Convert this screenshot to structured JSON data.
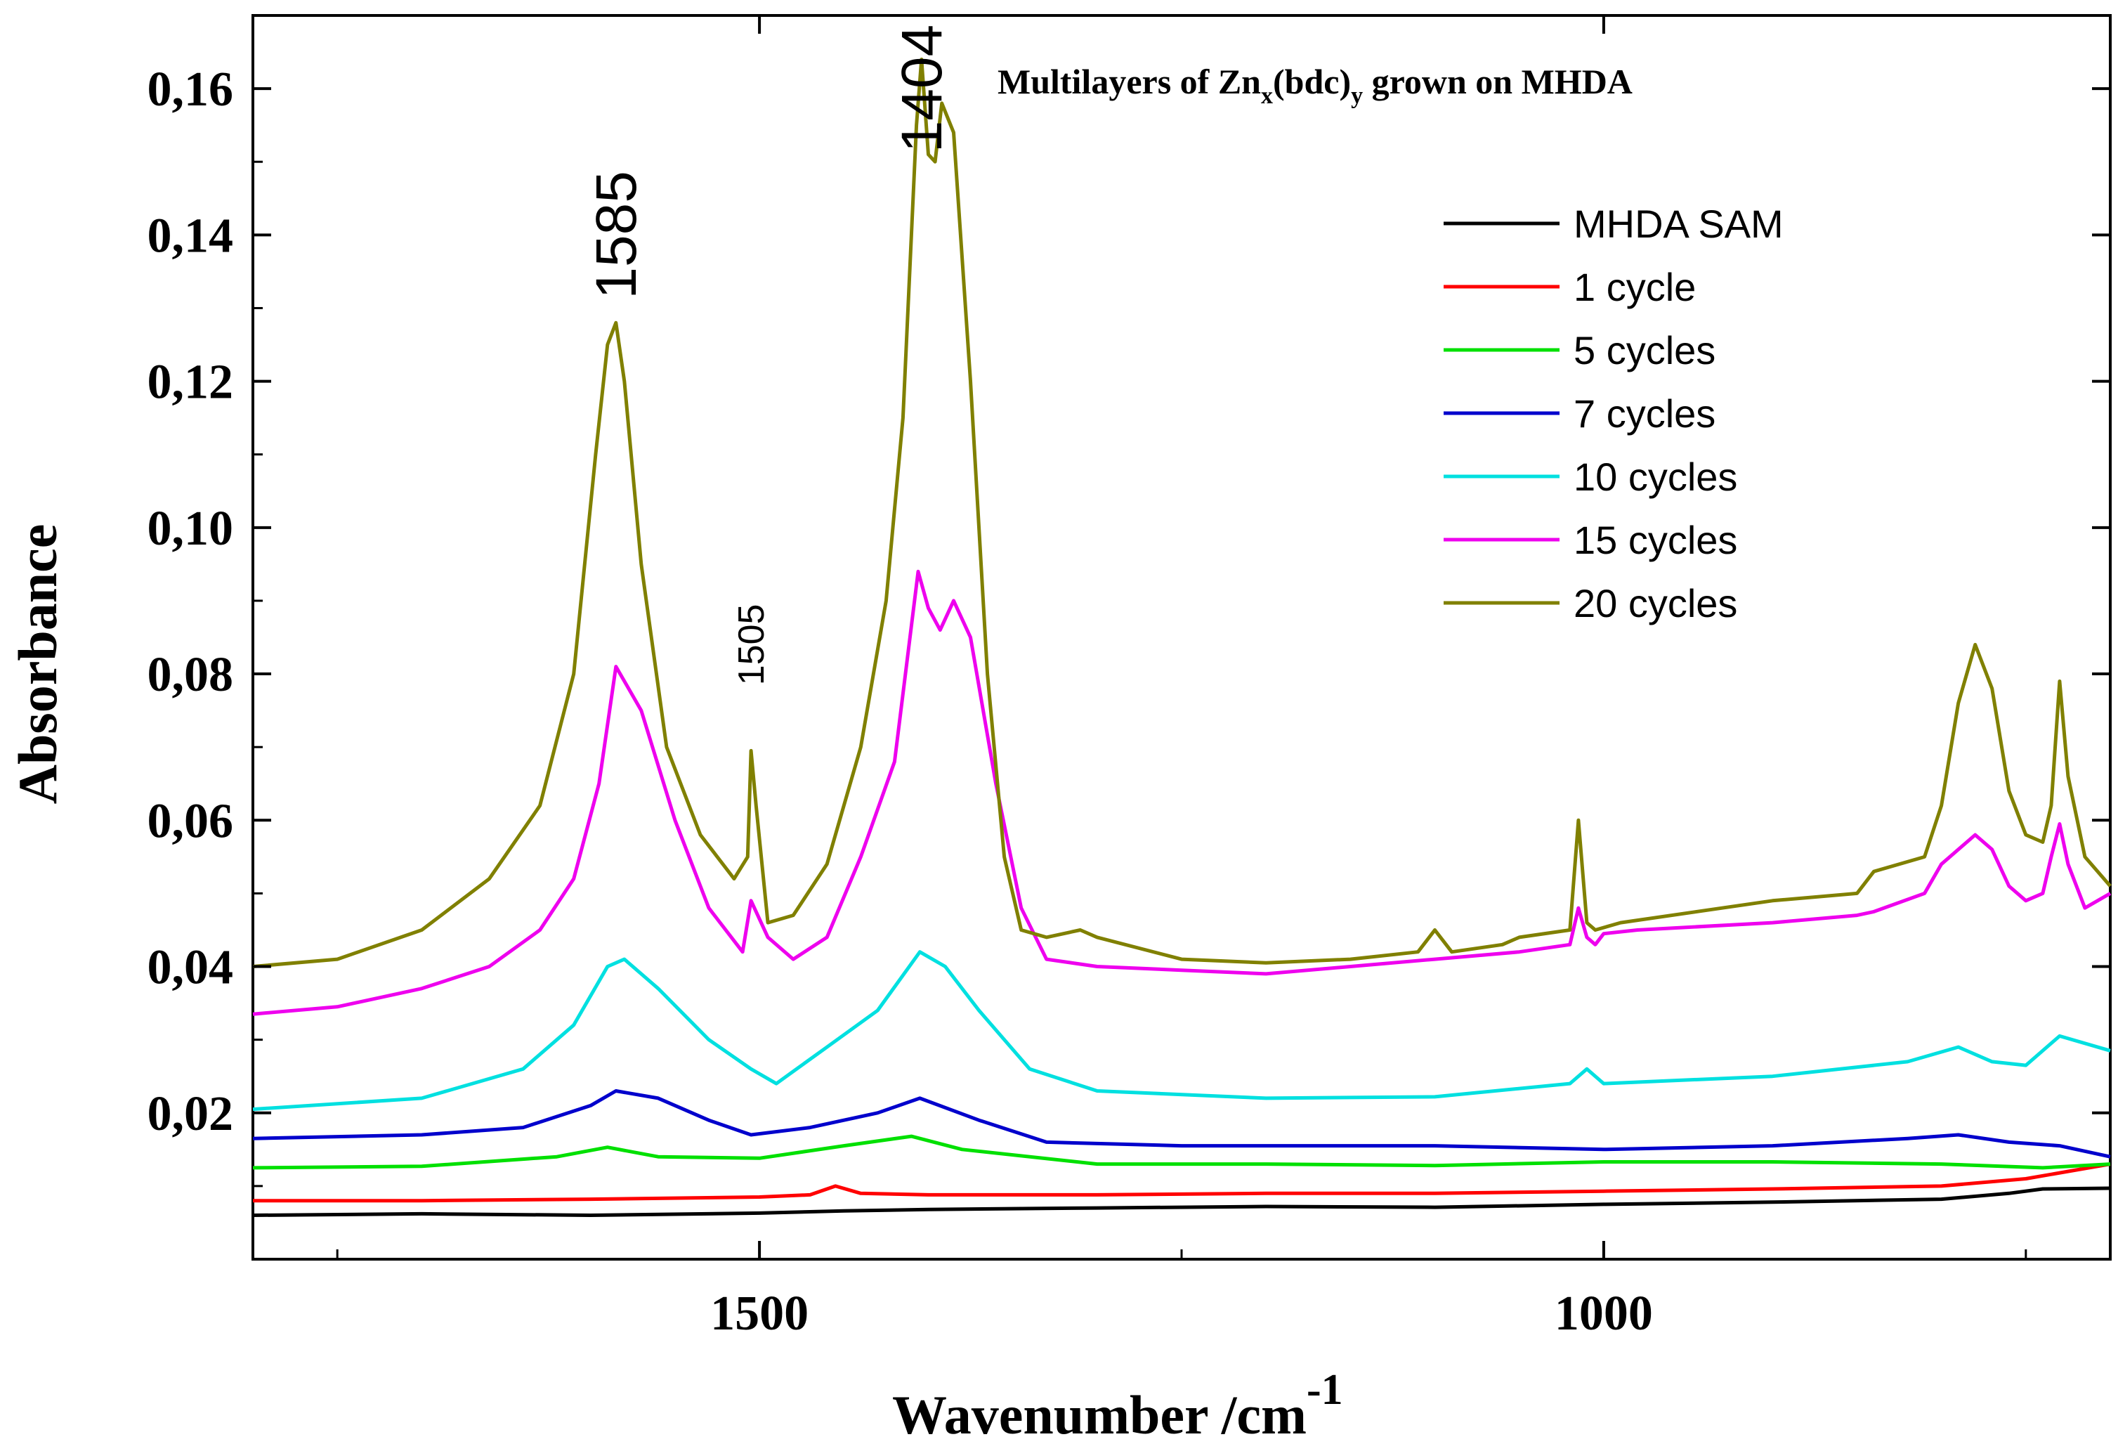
{
  "chart_data": {
    "type": "line",
    "title_parts": {
      "prefix": "Multilayers of Zn",
      "sub1": "x",
      "mid": "(bdc)",
      "sub2": "y",
      "suffix": " grown on MHDA"
    },
    "xlabel": "Wavenumber /cm",
    "xlabel_sup": "-1",
    "ylabel": "Absorbance",
    "xlim": [
      1800,
      700
    ],
    "ylim": [
      0.0,
      0.17
    ],
    "x_ticks": [
      1500,
      1000
    ],
    "x_tick_labels": [
      "1500",
      "1000"
    ],
    "y_ticks": [
      0.02,
      0.04,
      0.06,
      0.08,
      0.1,
      0.12,
      0.14,
      0.16
    ],
    "y_tick_labels": [
      "0,02",
      "0,04",
      "0,06",
      "0,08",
      "0,10",
      "0,12",
      "0,14",
      "0,16"
    ],
    "legend_position": "top-right",
    "annotations": [
      {
        "text": "1585",
        "x": 1585,
        "y": 0.14,
        "size": "large"
      },
      {
        "text": "1404",
        "x": 1404,
        "y": 0.16,
        "size": "large"
      },
      {
        "text": "1505",
        "x": 1505,
        "y": 0.084,
        "size": "small"
      }
    ],
    "series": [
      {
        "name": "MHDA SAM",
        "color": "#000000",
        "x": [
          1800,
          1700,
          1600,
          1500,
          1450,
          1400,
          1300,
          1200,
          1100,
          1000,
          900,
          800,
          760,
          740,
          700
        ],
        "y": [
          0.006,
          0.0062,
          0.006,
          0.0063,
          0.0066,
          0.0068,
          0.007,
          0.0072,
          0.0071,
          0.0075,
          0.0078,
          0.0082,
          0.009,
          0.0096,
          0.0097
        ]
      },
      {
        "name": "1 cycle",
        "color": "#ff0000",
        "x": [
          1800,
          1700,
          1600,
          1500,
          1470,
          1455,
          1440,
          1400,
          1300,
          1200,
          1100,
          1000,
          900,
          800,
          750,
          700
        ],
        "y": [
          0.008,
          0.008,
          0.0082,
          0.0085,
          0.0088,
          0.01,
          0.009,
          0.0088,
          0.0088,
          0.009,
          0.009,
          0.0093,
          0.0096,
          0.01,
          0.011,
          0.013
        ]
      },
      {
        "name": "5 cycles",
        "color": "#00e000",
        "x": [
          1800,
          1700,
          1620,
          1590,
          1560,
          1500,
          1450,
          1410,
          1380,
          1300,
          1200,
          1100,
          1000,
          900,
          800,
          740,
          700
        ],
        "y": [
          0.0125,
          0.0127,
          0.014,
          0.0153,
          0.014,
          0.0138,
          0.0155,
          0.0168,
          0.015,
          0.013,
          0.013,
          0.0128,
          0.0133,
          0.0133,
          0.013,
          0.0125,
          0.013
        ]
      },
      {
        "name": "7 cycles",
        "color": "#0000cc",
        "x": [
          1800,
          1700,
          1640,
          1600,
          1585,
          1560,
          1530,
          1505,
          1470,
          1430,
          1405,
          1370,
          1330,
          1250,
          1100,
          1000,
          900,
          820,
          790,
          760,
          730,
          700
        ],
        "y": [
          0.0165,
          0.017,
          0.018,
          0.021,
          0.023,
          0.022,
          0.019,
          0.017,
          0.018,
          0.02,
          0.022,
          0.019,
          0.016,
          0.0155,
          0.0155,
          0.015,
          0.0155,
          0.0165,
          0.017,
          0.016,
          0.0155,
          0.014
        ]
      },
      {
        "name": "10 cycles",
        "color": "#00e0e0",
        "x": [
          1800,
          1700,
          1640,
          1610,
          1590,
          1580,
          1560,
          1530,
          1505,
          1490,
          1460,
          1430,
          1405,
          1390,
          1370,
          1340,
          1300,
          1200,
          1100,
          1020,
          1010,
          1000,
          900,
          820,
          790,
          770,
          750,
          730,
          700
        ],
        "y": [
          0.0205,
          0.022,
          0.026,
          0.032,
          0.04,
          0.041,
          0.037,
          0.03,
          0.026,
          0.024,
          0.029,
          0.034,
          0.042,
          0.04,
          0.034,
          0.026,
          0.023,
          0.022,
          0.0222,
          0.024,
          0.026,
          0.024,
          0.025,
          0.027,
          0.029,
          0.027,
          0.0265,
          0.0305,
          0.0285
        ]
      },
      {
        "name": "15 cycles",
        "color": "#ee00ee",
        "x": [
          1800,
          1750,
          1700,
          1660,
          1630,
          1610,
          1595,
          1585,
          1570,
          1550,
          1530,
          1510,
          1505,
          1495,
          1480,
          1460,
          1440,
          1420,
          1406,
          1400,
          1393,
          1385,
          1375,
          1360,
          1345,
          1330,
          1300,
          1250,
          1200,
          1150,
          1100,
          1050,
          1020,
          1015,
          1010,
          1005,
          1000,
          980,
          900,
          850,
          840,
          810,
          800,
          780,
          770,
          760,
          750,
          740,
          735,
          730,
          725,
          715,
          700
        ],
        "y": [
          0.0335,
          0.0345,
          0.037,
          0.04,
          0.045,
          0.052,
          0.065,
          0.081,
          0.075,
          0.06,
          0.048,
          0.042,
          0.049,
          0.044,
          0.041,
          0.044,
          0.055,
          0.068,
          0.094,
          0.089,
          0.086,
          0.09,
          0.085,
          0.065,
          0.048,
          0.041,
          0.04,
          0.0395,
          0.039,
          0.04,
          0.041,
          0.042,
          0.043,
          0.048,
          0.044,
          0.043,
          0.0445,
          0.045,
          0.046,
          0.047,
          0.0475,
          0.05,
          0.054,
          0.058,
          0.056,
          0.051,
          0.049,
          0.05,
          0.055,
          0.0595,
          0.054,
          0.048,
          0.05
        ]
      },
      {
        "name": "20 cycles",
        "color": "#808000",
        "x": [
          1800,
          1750,
          1700,
          1660,
          1630,
          1610,
          1597,
          1590,
          1585,
          1580,
          1570,
          1555,
          1535,
          1515,
          1507,
          1505,
          1502,
          1495,
          1480,
          1460,
          1440,
          1425,
          1415,
          1407,
          1404,
          1400,
          1396,
          1392,
          1385,
          1375,
          1365,
          1355,
          1345,
          1330,
          1310,
          1300,
          1250,
          1200,
          1150,
          1110,
          1100,
          1090,
          1060,
          1050,
          1020,
          1015,
          1010,
          1005,
          990,
          900,
          850,
          840,
          810,
          800,
          790,
          780,
          770,
          760,
          750,
          740,
          735,
          730,
          725,
          715,
          700
        ],
        "y": [
          0.04,
          0.041,
          0.045,
          0.052,
          0.062,
          0.08,
          0.11,
          0.125,
          0.128,
          0.12,
          0.095,
          0.07,
          0.058,
          0.052,
          0.055,
          0.0695,
          0.062,
          0.046,
          0.047,
          0.054,
          0.07,
          0.09,
          0.115,
          0.155,
          0.164,
          0.151,
          0.15,
          0.158,
          0.154,
          0.12,
          0.08,
          0.055,
          0.045,
          0.044,
          0.045,
          0.044,
          0.041,
          0.0405,
          0.041,
          0.042,
          0.045,
          0.042,
          0.043,
          0.044,
          0.045,
          0.06,
          0.046,
          0.045,
          0.046,
          0.049,
          0.05,
          0.053,
          0.055,
          0.062,
          0.076,
          0.084,
          0.078,
          0.064,
          0.058,
          0.057,
          0.062,
          0.079,
          0.066,
          0.055,
          0.051
        ]
      }
    ]
  }
}
